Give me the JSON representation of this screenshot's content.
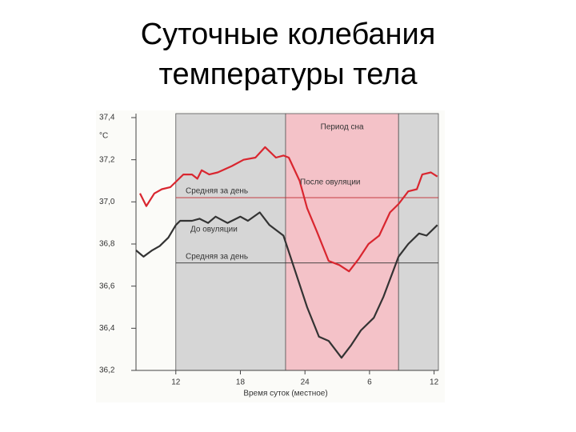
{
  "chart_data": {
    "type": "line",
    "title_lines": [
      "Суточные колебания",
      "температуры тела"
    ],
    "y_unit": "°C",
    "x_label": "Время суток (местное)",
    "xlim": [
      8.3,
      36.4
    ],
    "xticks": [
      12,
      18,
      24,
      {
        "value": 30,
        "label": "6"
      },
      {
        "value": 36,
        "label": "12"
      }
    ],
    "ylim": [
      36.2,
      37.4
    ],
    "yticks": [
      {
        "value": 36.2,
        "label": "36,2"
      },
      {
        "value": 36.4,
        "label": "36,4"
      },
      {
        "value": 36.6,
        "label": "36,6"
      },
      {
        "value": 36.8,
        "label": "36,8"
      },
      {
        "value": 37.0,
        "label": "37,0"
      },
      {
        "value": 37.2,
        "label": "37,2"
      },
      {
        "value": 37.4,
        "label": "37,4"
      }
    ],
    "bands": [
      {
        "start": 12,
        "end": 22.2,
        "color": "#d6d6d6"
      },
      {
        "start": 22.2,
        "end": 32.7,
        "color": "#f4c2c8",
        "label": "Период сна"
      },
      {
        "start": 32.7,
        "end": 36.4,
        "color": "#d6d6d6"
      }
    ],
    "reference_lines": [
      {
        "label": "Средняя за день",
        "value": 37.02,
        "color": "#c0272d"
      },
      {
        "label": "Средняя за день",
        "value": 36.71,
        "color": "#333333"
      }
    ],
    "series": [
      {
        "name": "После овуляции",
        "color": "#d9262f",
        "x": [
          8.67,
          9.26,
          10.0,
          10.7,
          11.5,
          12.1,
          12.7,
          13.5,
          14.0,
          14.4,
          15.1,
          15.9,
          17.2,
          18.3,
          19.4,
          20.3,
          21.3,
          22.0,
          22.5,
          23.5,
          24.2,
          25.1,
          26.2,
          27.2,
          28.1,
          29.0,
          29.9,
          30.9,
          31.9,
          32.7,
          33.6,
          34.4,
          34.9,
          35.7,
          36.3
        ],
        "values": [
          37.04,
          36.98,
          37.04,
          37.06,
          37.07,
          37.1,
          37.13,
          37.13,
          37.11,
          37.15,
          37.13,
          37.14,
          37.17,
          37.2,
          37.21,
          37.26,
          37.21,
          37.22,
          37.21,
          37.1,
          36.97,
          36.86,
          36.72,
          36.7,
          36.67,
          36.73,
          36.8,
          36.84,
          36.95,
          36.99,
          37.05,
          37.06,
          37.13,
          37.14,
          37.12
        ]
      },
      {
        "name": "До овуляции",
        "color": "#333333",
        "x": [
          8.3,
          9.0,
          9.8,
          10.5,
          11.3,
          12.0,
          12.4,
          13.5,
          14.2,
          15.0,
          15.7,
          16.8,
          18.0,
          18.7,
          19.8,
          20.7,
          22.0,
          23.1,
          24.2,
          25.3,
          26.2,
          27.4,
          28.3,
          29.2,
          30.4,
          31.3,
          32.7,
          33.6,
          34.6,
          35.3,
          36.3
        ],
        "values": [
          36.77,
          36.74,
          36.77,
          36.79,
          36.83,
          36.89,
          36.91,
          36.91,
          36.92,
          36.9,
          36.93,
          36.9,
          36.93,
          36.91,
          36.95,
          36.89,
          36.84,
          36.67,
          36.5,
          36.36,
          36.34,
          36.26,
          36.32,
          36.39,
          36.45,
          36.55,
          36.74,
          36.8,
          36.85,
          36.84,
          36.89
        ]
      }
    ]
  }
}
